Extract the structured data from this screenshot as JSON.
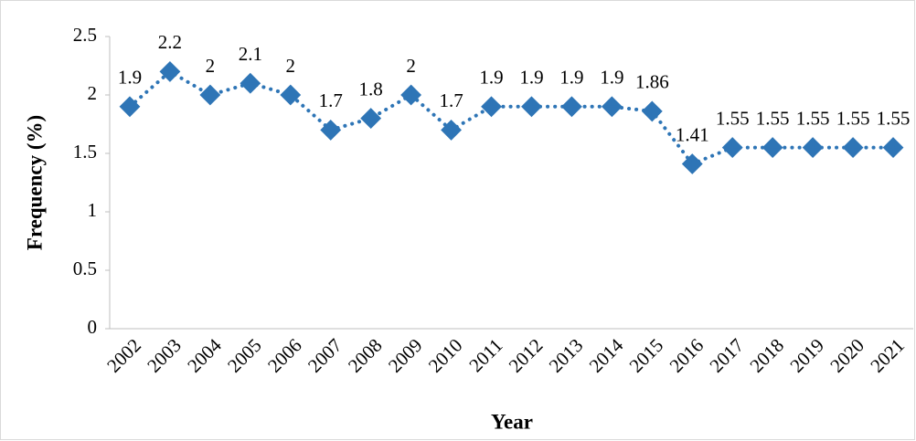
{
  "chart_data": {
    "type": "line",
    "x_label": "Year",
    "y_label": "Frequency (%)",
    "categories": [
      "2002",
      "2003",
      "2004",
      "2005",
      "2006",
      "2007",
      "2008",
      "2009",
      "2010",
      "2011",
      "2012",
      "2013",
      "2014",
      "2015",
      "2016",
      "2017",
      "2018",
      "2019",
      "2020",
      "2021"
    ],
    "values": [
      1.9,
      2.2,
      2,
      2.1,
      2,
      1.7,
      1.8,
      2,
      1.7,
      1.9,
      1.9,
      1.9,
      1.9,
      1.86,
      1.41,
      1.55,
      1.55,
      1.55,
      1.55,
      1.55
    ],
    "color": "#2e75b6",
    "ylim": [
      0,
      2.5
    ],
    "yticks": [
      0,
      0.5,
      1,
      1.5,
      2,
      2.5
    ],
    "grid": false
  }
}
